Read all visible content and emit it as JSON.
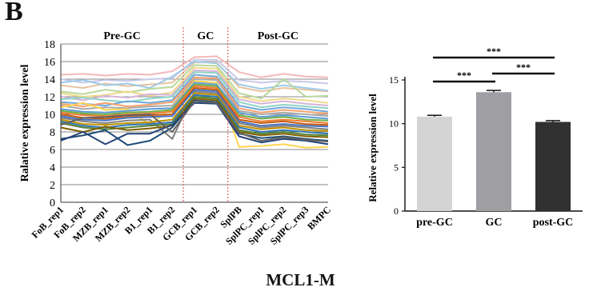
{
  "panel_label": "B",
  "figure_title": "MCL1-M",
  "chart_data": [
    {
      "type": "line",
      "ylabel": "Ralative expression level",
      "ylim": [
        0,
        18
      ],
      "yticks": [
        0,
        2,
        4,
        6,
        8,
        10,
        12,
        14,
        16,
        18
      ],
      "grid": true,
      "categories": [
        "FoB_rep1",
        "FoB_rep2",
        "MZB_rep1",
        "MZB_rep2",
        "B1_rep1",
        "B1_rep2",
        "GCB_rep1",
        "GCB_rep2",
        "SplPB",
        "SplPC_rep1",
        "SplPC_rep2",
        "SplPC_rep3",
        "BMPC"
      ],
      "regions": [
        {
          "label": "Pre-GC",
          "from": 0,
          "to": 5.5
        },
        {
          "label": "GC",
          "from": 5.5,
          "to": 7.5
        },
        {
          "label": "Post-GC",
          "from": 7.5,
          "to": 12
        }
      ],
      "separators_at": [
        5.5,
        7.5
      ],
      "series": [
        {
          "color": "#f4b8b8",
          "values": [
            14.5,
            14.6,
            14.4,
            14.6,
            14.5,
            14.9,
            16.5,
            16.6,
            14.8,
            14.2,
            14.6,
            14.3,
            14.2
          ]
        },
        {
          "color": "#c9c9e8",
          "values": [
            14.0,
            13.6,
            13.9,
            13.8,
            14.0,
            14.1,
            16.2,
            16.2,
            13.9,
            13.6,
            13.8,
            13.7,
            13.5
          ]
        },
        {
          "color": "#e6c3a0",
          "values": [
            13.3,
            13.0,
            13.5,
            13.2,
            13.4,
            13.6,
            15.9,
            15.9,
            13.1,
            12.6,
            13.0,
            12.8,
            12.6
          ]
        },
        {
          "color": "#9fcbe6",
          "values": [
            13.6,
            13.9,
            13.3,
            13.5,
            13.0,
            14.3,
            16.0,
            15.8,
            13.4,
            12.9,
            13.3,
            13.0,
            12.7
          ]
        },
        {
          "color": "#b7d89c",
          "values": [
            12.6,
            12.3,
            12.8,
            12.5,
            12.9,
            13.1,
            15.6,
            15.5,
            12.4,
            11.8,
            14.0,
            12.0,
            12.1
          ]
        },
        {
          "color": "#f1d98a",
          "values": [
            12.4,
            12.0,
            12.2,
            12.6,
            12.1,
            12.5,
            15.3,
            15.2,
            12.0,
            11.5,
            11.8,
            11.6,
            11.3
          ]
        },
        {
          "color": "#d4b4d9",
          "values": [
            12.0,
            11.6,
            12.1,
            11.9,
            12.3,
            12.2,
            15.0,
            14.9,
            11.7,
            11.2,
            11.5,
            11.2,
            11.0
          ]
        },
        {
          "color": "#8fd3c4",
          "values": [
            11.7,
            11.9,
            11.6,
            11.4,
            11.8,
            12.0,
            14.8,
            14.7,
            11.4,
            10.8,
            11.1,
            10.9,
            10.7
          ]
        },
        {
          "color": "#6fa8dc",
          "values": [
            11.4,
            11.2,
            11.0,
            11.5,
            11.3,
            11.6,
            14.5,
            14.3,
            11.0,
            10.5,
            10.8,
            10.6,
            10.3
          ]
        },
        {
          "color": "#f6a26b",
          "values": [
            11.2,
            10.9,
            11.3,
            10.9,
            11.1,
            11.4,
            14.2,
            14.1,
            10.7,
            10.2,
            10.5,
            10.3,
            10.1
          ]
        },
        {
          "color": "#a9a9a9",
          "values": [
            11.0,
            10.6,
            10.8,
            10.7,
            10.9,
            11.0,
            14.0,
            13.9,
            10.4,
            10.0,
            10.2,
            10.0,
            9.8
          ]
        },
        {
          "color": "#ffd54f",
          "values": [
            10.8,
            11.3,
            10.5,
            10.6,
            8.8,
            10.8,
            13.8,
            13.6,
            6.3,
            6.4,
            6.6,
            6.2,
            6.3
          ]
        },
        {
          "color": "#5b9bd5",
          "values": [
            10.6,
            10.3,
            10.2,
            10.4,
            10.6,
            10.7,
            13.6,
            13.4,
            10.2,
            9.7,
            9.9,
            9.7,
            9.5
          ]
        },
        {
          "color": "#70ad47",
          "values": [
            10.4,
            10.1,
            10.0,
            10.2,
            10.3,
            10.5,
            13.4,
            13.2,
            9.9,
            9.5,
            9.7,
            9.4,
            9.3
          ]
        },
        {
          "color": "#ed7d31",
          "values": [
            10.2,
            9.9,
            9.8,
            10.0,
            10.1,
            10.3,
            13.2,
            13.0,
            9.7,
            9.2,
            9.4,
            9.2,
            9.0
          ]
        },
        {
          "color": "#c55a11",
          "values": [
            10.0,
            9.6,
            9.5,
            9.8,
            9.9,
            10.0,
            13.0,
            12.8,
            9.4,
            9.0,
            9.2,
            8.9,
            8.8
          ]
        },
        {
          "color": "#4472c4",
          "values": [
            9.8,
            9.4,
            9.3,
            9.6,
            9.7,
            9.8,
            12.8,
            12.6,
            9.2,
            8.7,
            8.9,
            8.7,
            8.6
          ]
        },
        {
          "color": "#7f7f7f",
          "values": [
            9.6,
            9.2,
            9.0,
            9.3,
            9.4,
            7.2,
            12.6,
            12.4,
            9.0,
            8.5,
            8.7,
            8.5,
            8.3
          ]
        },
        {
          "color": "#bf9000",
          "values": [
            9.4,
            8.9,
            8.8,
            9.0,
            9.1,
            9.4,
            12.4,
            12.2,
            8.7,
            8.3,
            8.5,
            8.2,
            8.1
          ]
        },
        {
          "color": "#2e75b6",
          "values": [
            9.2,
            8.7,
            8.5,
            8.8,
            8.9,
            9.1,
            12.2,
            12.0,
            8.5,
            8.0,
            8.2,
            8.0,
            7.8
          ]
        },
        {
          "color": "#548235",
          "values": [
            9.0,
            8.5,
            8.3,
            8.5,
            8.7,
            8.9,
            12.0,
            11.8,
            8.2,
            7.8,
            8.0,
            7.7,
            7.6
          ]
        },
        {
          "color": "#806000",
          "values": [
            8.5,
            8.0,
            8.6,
            8.2,
            8.4,
            8.7,
            11.8,
            11.6,
            8.0,
            7.6,
            7.8,
            7.5,
            7.4
          ]
        },
        {
          "color": "#1f4e79",
          "values": [
            7.2,
            7.6,
            8.2,
            6.5,
            7.0,
            8.5,
            11.6,
            11.4,
            7.8,
            7.3,
            7.5,
            7.2,
            7.0
          ]
        },
        {
          "color": "#264478",
          "values": [
            7.0,
            8.0,
            6.6,
            7.8,
            7.8,
            8.8,
            11.3,
            11.2,
            7.5,
            6.8,
            7.2,
            7.0,
            6.6
          ]
        },
        {
          "color": "#636363",
          "values": [
            8.8,
            9.6,
            9.7,
            9.9,
            10.0,
            8.0,
            11.5,
            11.3,
            7.9,
            7.0,
            7.4,
            7.1,
            6.9
          ]
        }
      ]
    },
    {
      "type": "bar",
      "ylabel": "Relative expression level",
      "ylim": [
        0,
        15
      ],
      "yticks": [
        0,
        5,
        10,
        15
      ],
      "categories": [
        "pre-GC",
        "GC",
        "post-GC"
      ],
      "values": [
        10.8,
        13.6,
        10.2
      ],
      "errors": [
        0.15,
        0.2,
        0.15
      ],
      "colors": [
        "#d4d4d4",
        "#9e9ea3",
        "#303030"
      ],
      "significance": [
        {
          "from": 0,
          "to": 2,
          "label": "***"
        },
        {
          "from": 0,
          "to": 1,
          "label": "***"
        },
        {
          "from": 1,
          "to": 2,
          "label": "***"
        }
      ]
    }
  ]
}
